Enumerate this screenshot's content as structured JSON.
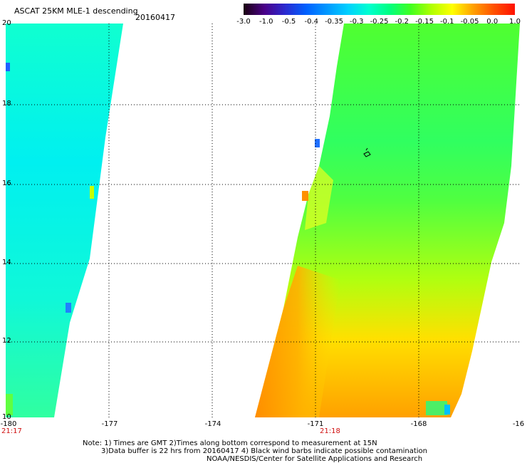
{
  "header": {
    "title": "ASCAT 25KM MLE-1 descending",
    "date": "20160417"
  },
  "colorbar": {
    "labels": [
      "-3.0",
      "-1.0",
      "-0.5",
      "-0.4",
      "-0.35",
      "-0.3",
      "-0.25",
      "-0.2",
      "-0.15",
      "-0.1",
      "-0.05",
      "0.0",
      "1.0"
    ],
    "colors": [
      "#1a0010",
      "#4a0088",
      "#2a2ad0",
      "#0060ff",
      "#0098ff",
      "#00d0ff",
      "#00ffd0",
      "#00ff80",
      "#40ff20",
      "#b0ff00",
      "#ffff00",
      "#ffa000",
      "#ff5000",
      "#ff1000"
    ]
  },
  "axes": {
    "latitudes": [
      "20",
      "18",
      "16",
      "14",
      "12",
      "10"
    ],
    "longitudes": [
      "-180",
      "-177",
      "-174",
      "-171",
      "-168",
      "-16"
    ]
  },
  "times": {
    "left": "21:17",
    "middle": "21:18"
  },
  "notes": {
    "line1": "Note: 1) Times are GMT 2)Times along bottom correspond to measurement at 15N",
    "line2": "3)Data buffer is 22 hrs from 20160417 4) Black wind barbs indicate possible contamination",
    "line3": "NOAA/NESDIS/Center for Satellite Applications and Research"
  }
}
